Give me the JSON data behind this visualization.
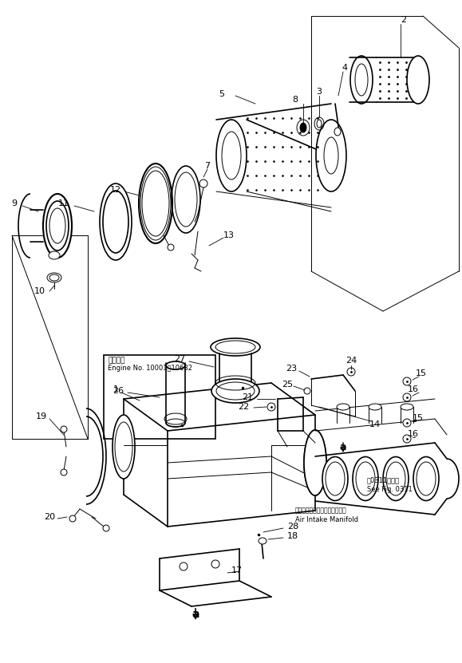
{
  "bg_color": "#ffffff",
  "fig_width": 5.79,
  "fig_height": 8.31,
  "dpi": 100,
  "line_color": "#000000",
  "parts": {
    "note_engine_line1": "適用号機",
    "note_engine_line2": "Engine No. 10001−10682",
    "note_fig_line1": "第0311図参照",
    "note_fig_line2": "See Fig. 0311",
    "note_manifold_jp": "エアーインテークマニホールド",
    "note_manifold_en": "Air Intake Manifold"
  }
}
